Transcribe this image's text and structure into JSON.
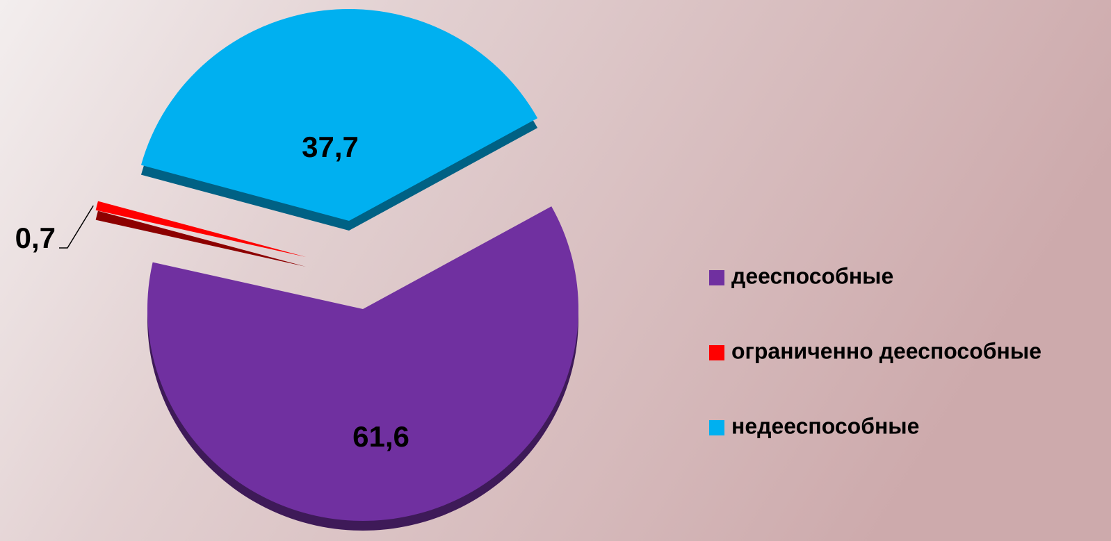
{
  "chart_data": {
    "type": "pie",
    "categories": [
      "дееспособные",
      "ограниченно дееспособные",
      "недееспособные"
    ],
    "values": [
      61.6,
      0.7,
      37.7
    ],
    "value_labels": [
      "61,6",
      "0,7",
      "37,7"
    ],
    "colors": [
      "#7030a0",
      "#ff0000",
      "#00b0f0"
    ],
    "legend": "right"
  }
}
